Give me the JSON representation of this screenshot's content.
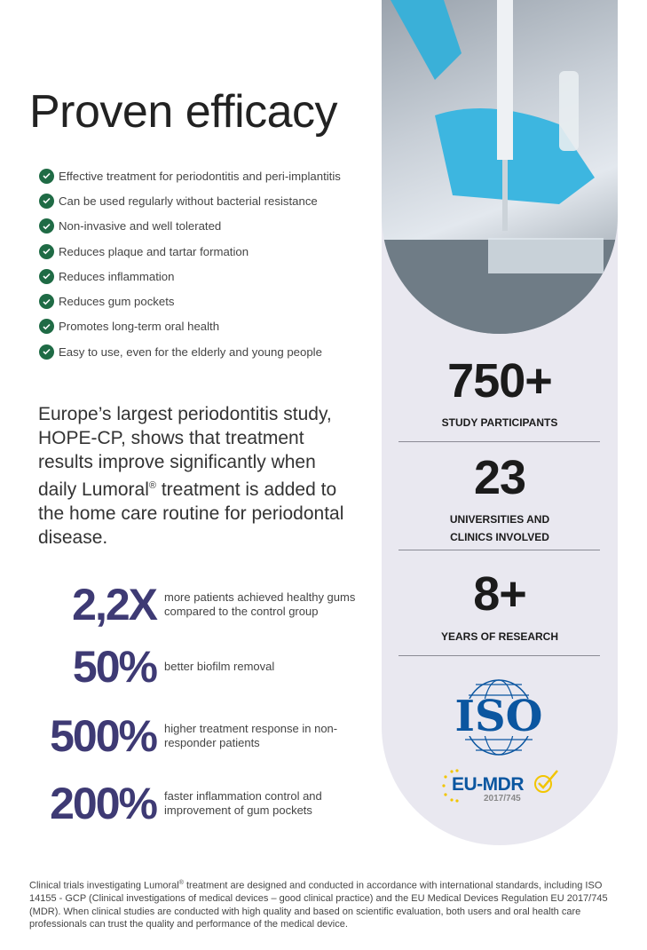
{
  "title": "Proven efficacy",
  "benefits": [
    "Effective treatment for periodontitis and peri-implantitis",
    "Can be used regularly without bacterial resistance",
    "Non-invasive and well tolerated",
    "Reduces plaque and tartar formation",
    "Reduces inflammation",
    "Reduces gum pockets",
    "Promotes long-term oral health",
    "Easy to use, even for the elderly and young people"
  ],
  "intro": {
    "before": "Europe’s largest  periodontitis study, HOPE-CP, shows that treatment results improve significantly when daily Lumoral",
    "reg": "®",
    "after": " treatment is added to the home care routine for periodontal disease."
  },
  "stats": [
    {
      "value": "2,2X",
      "text": "more patients achieved healthy gums compared to the control group"
    },
    {
      "value": "50%",
      "text": "better biofilm removal"
    },
    {
      "value": "500%",
      "text": "higher treatment response in non-responder patients"
    },
    {
      "value": "200%",
      "text": "faster inflammation control and improvement of gum pockets"
    }
  ],
  "facts": [
    {
      "value": "750+",
      "label": "STUDY PARTICIPANTS"
    },
    {
      "value": "23",
      "label": "UNIVERSITIES AND CLINICS INVOLVED"
    },
    {
      "value": "8+",
      "label": "YEARS OF RESEARCH"
    }
  ],
  "logos": {
    "iso": "ISO",
    "eu_mdr": "EU-MDR",
    "eu_mdr_year": "2017/745"
  },
  "footnote": {
    "before": "Clinical trials investigating Lumoral",
    "reg": "®",
    "after": " treatment are designed and conducted in accordance with international standards, including ISO 14155 - GCP (Clinical investigations of medical devices – good clinical practice) and the EU Medical Devices Regulation EU 2017/745 (MDR). When clinical studies are conducted with high quality and based on scientific evaluation, both users and oral health care professionals can trust the quality and performance of the medical device."
  },
  "colors": {
    "accent": "#3e3a74",
    "check": "#1f6b45",
    "panel": "#e9e8f0",
    "iso_blue": "#0b56a0",
    "eu_yellow": "#f2c500"
  }
}
